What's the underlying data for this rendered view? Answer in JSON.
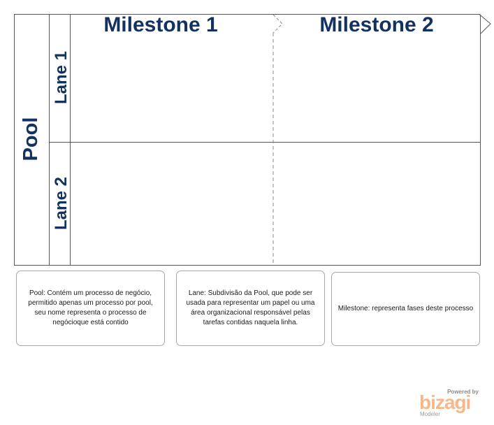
{
  "pool": {
    "label": "Pool"
  },
  "lanes": [
    {
      "label": "Lane 1"
    },
    {
      "label": "Lane 2"
    }
  ],
  "milestones": [
    {
      "label": "Milestone 1"
    },
    {
      "label": "Milestone 2"
    }
  ],
  "notes": {
    "pool": "Pool: Contém um processo de negócio, permitido apenas um processo por pool, seu nome representa o processo de negócioque está contido",
    "lane": "Lane:  Subdivisão da Pool,  que pode ser usada para representar um papel ou uma área organizacional responsável pelas tarefas contidas naquela linha.",
    "milestone": "Milestone: representa fases deste processo"
  },
  "logo": {
    "powered_by": "Powered by",
    "brand": "bizagi",
    "product": "Modeler"
  },
  "colors": {
    "title_text": "#13325f",
    "border": "#555555",
    "note_border": "#a9a9a9",
    "logo": "#f5b88a"
  }
}
